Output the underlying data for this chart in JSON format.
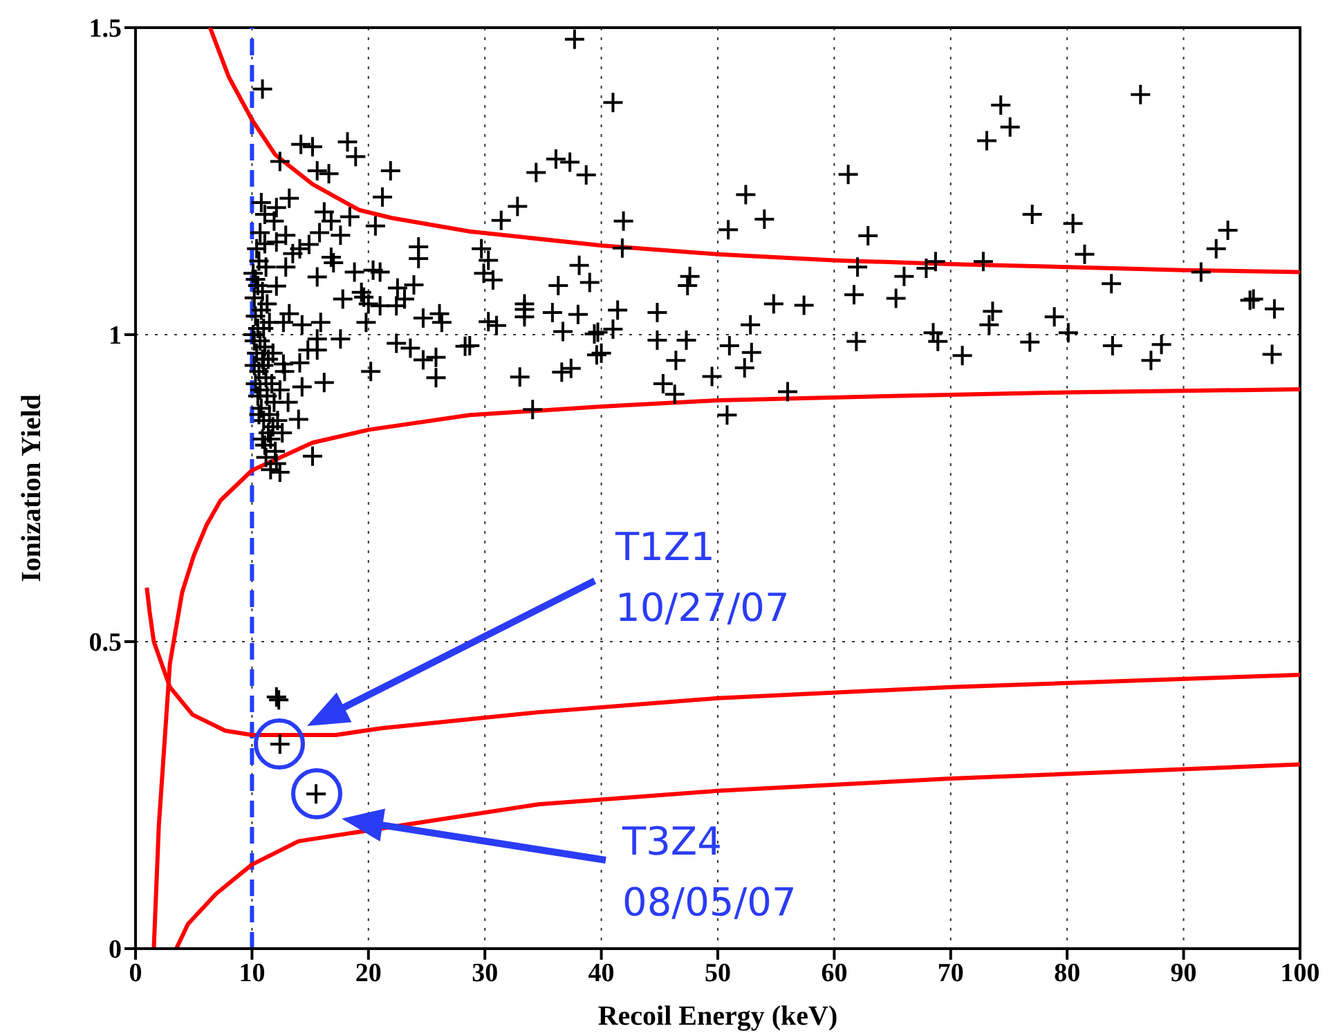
{
  "chart_data": {
    "type": "scatter",
    "xlabel": "Recoil Energy (keV)",
    "ylabel": "Ionization Yield",
    "xlim": [
      0,
      100
    ],
    "xticks": [
      0,
      10,
      20,
      30,
      40,
      50,
      60,
      70,
      80,
      90,
      100
    ],
    "ylim": [
      0,
      1.5
    ],
    "yticks": [
      0,
      0.5,
      1,
      1.5
    ],
    "grid": true,
    "ref_lines": [
      {
        "axis": "x",
        "value": 10,
        "color": "#2040ff",
        "line_style": "dashed"
      }
    ],
    "annotations": [
      "T1Z1 10/27/07",
      "T3Z4 08/05/07"
    ],
    "series": [
      {
        "marker": "cross",
        "color": "#000000",
        "x": [
          10.9,
          14.2,
          15.2,
          18.2,
          18.9,
          12.4,
          15.6,
          16.6,
          21.9,
          21.2,
          13.2,
          10.8,
          12.1,
          11.1,
          11.9,
          16.2,
          18.4,
          20.6,
          16.8,
          15.8,
          17.6,
          10.7,
          11.1,
          12.9,
          12.1,
          14.9,
          14.1,
          13.5,
          16.8,
          17.0,
          24.3,
          24.3,
          12.9,
          15.6,
          18.8,
          20.4,
          21.0,
          12.1,
          22.5,
          23.9,
          19.4,
          17.8,
          19.6,
          20.0,
          21.0,
          23.1,
          22.4,
          13.2,
          12.7,
          15.9,
          14.3,
          24.7,
          26.1,
          26.3,
          19.8,
          17.6,
          15.6,
          14.8,
          15.6,
          22.4,
          23.6,
          24.7,
          25.8,
          25.8,
          28.3,
          20.2,
          12.7,
          14.1,
          14.3,
          16.2,
          14.0,
          15.2,
          12.4,
          37.7,
          41.0,
          36.1,
          37.3,
          34.4,
          38.7,
          32.8,
          31.4,
          41.9,
          29.7,
          30.3,
          29.9,
          30.7,
          38.1,
          36.3,
          39.0,
          41.8,
          33.4,
          33.4,
          33.4,
          35.8,
          38.0,
          41.4,
          30.3,
          31.0,
          36.7,
          39.4,
          39.7,
          41.0,
          28.7,
          39.6,
          40.0,
          33.0,
          36.6,
          37.4,
          34.1,
          44.8,
          44.8,
          47.3,
          46.4,
          47.6,
          47.4,
          45.3,
          46.3,
          49.5,
          50.8,
          51.0,
          52.8,
          52.9,
          52.3,
          54.8,
          57.4,
          56.0,
          50.9,
          52.4,
          54.0,
          61.2,
          62.9,
          62.0,
          61.7,
          61.9,
          65.3,
          66.0,
          67.9,
          68.7,
          68.5,
          68.9,
          71.0,
          73.1,
          74.3,
          75.1,
          72.8,
          73.6,
          73.3,
          77.0,
          76.8,
          78.9,
          80.1,
          80.5,
          81.5,
          83.8,
          83.9,
          86.3,
          87.2,
          88.1,
          91.5,
          92.8,
          93.8,
          95.7,
          96.0,
          97.8,
          97.6,
          12.3,
          12.1,
          12.4,
          15.5,
          10.1,
          10.2,
          10.3,
          10.1,
          10.4,
          10.2,
          10.5,
          10.6,
          10.3,
          10.7,
          10.8,
          10.5,
          10.9,
          11.0,
          10.6,
          11.1,
          10.8,
          11.2,
          11.0,
          11.3,
          10.9,
          11.4,
          11.1,
          11.5,
          11.2,
          11.6,
          11.8,
          12.0,
          11.4,
          11.7,
          11.9,
          12.2,
          11.5,
          11.3,
          10.4,
          10.2,
          10.7,
          11.6,
          12.1,
          10.5,
          10.3,
          11.0,
          11.8,
          12.4,
          12.6,
          13.1,
          12.8,
          10.6,
          11.2,
          10.9
        ],
        "values": [
          1.4,
          1.31,
          1.306,
          1.314,
          1.29,
          1.282,
          1.267,
          1.262,
          1.267,
          1.224,
          1.222,
          1.215,
          1.207,
          1.196,
          1.185,
          1.2,
          1.192,
          1.177,
          1.185,
          1.166,
          1.162,
          1.166,
          1.148,
          1.162,
          1.151,
          1.147,
          1.14,
          1.132,
          1.126,
          1.117,
          1.143,
          1.124,
          1.11,
          1.094,
          1.102,
          1.105,
          1.102,
          1.079,
          1.076,
          1.081,
          1.069,
          1.058,
          1.061,
          1.05,
          1.047,
          1.058,
          1.047,
          1.034,
          1.02,
          1.02,
          1.016,
          1.027,
          1.034,
          1.02,
          1.02,
          0.993,
          0.993,
          0.975,
          0.975,
          0.986,
          0.978,
          0.959,
          0.963,
          0.93,
          0.981,
          0.94,
          0.952,
          0.954,
          0.915,
          0.922,
          0.862,
          0.802,
          0.776,
          1.481,
          1.378,
          1.286,
          1.281,
          1.264,
          1.26,
          1.209,
          1.186,
          1.185,
          1.14,
          1.121,
          1.1,
          1.089,
          1.113,
          1.08,
          1.085,
          1.141,
          1.05,
          1.041,
          1.029,
          1.036,
          1.033,
          1.04,
          1.021,
          1.015,
          1.005,
          1.001,
          1.004,
          1.009,
          0.982,
          0.967,
          0.97,
          0.931,
          0.939,
          0.945,
          0.878,
          1.036,
          0.991,
          0.991,
          0.958,
          1.095,
          1.08,
          0.92,
          0.903,
          0.932,
          0.869,
          0.982,
          1.016,
          0.971,
          0.946,
          1.05,
          1.048,
          0.907,
          1.171,
          1.228,
          1.188,
          1.261,
          1.161,
          1.11,
          1.065,
          0.989,
          1.059,
          1.095,
          1.108,
          1.119,
          1.003,
          0.989,
          0.966,
          1.316,
          1.374,
          1.338,
          1.119,
          1.038,
          1.016,
          1.196,
          0.988,
          1.029,
          1.003,
          1.181,
          1.131,
          1.083,
          0.982,
          1.391,
          0.958,
          0.984,
          1.102,
          1.14,
          1.17,
          1.056,
          1.058,
          1.042,
          0.968,
          0.405,
          0.41,
          0.333,
          0.252,
          1.1,
          1.06,
          1.03,
          1.0,
          0.97,
          0.95,
          1.08,
          1.12,
          0.92,
          0.99,
          1.04,
          0.9,
          0.96,
          1.01,
          0.94,
          0.98,
          0.88,
          0.93,
          0.86,
          0.9,
          1.07,
          0.84,
          0.82,
          0.87,
          0.8,
          0.83,
          0.85,
          0.81,
          0.96,
          0.92,
          0.89,
          0.86,
          1.02,
          1.05,
          1.14,
          0.99,
          0.91,
          0.78,
          0.79,
          1.01,
          1.09,
          0.95,
          0.97,
          0.91,
          0.84,
          0.89,
          0.94,
          0.87,
          1.11,
          0.83
        ]
      },
      {
        "type": "line",
        "color": "#ff0000",
        "x": [
          6.4,
          8,
          10,
          12,
          15.2,
          19.2,
          22,
          28.7,
          40.1,
          50,
          60,
          70,
          80,
          90,
          100
        ],
        "values": [
          1.5,
          1.42,
          1.35,
          1.293,
          1.245,
          1.203,
          1.19,
          1.168,
          1.145,
          1.131,
          1.121,
          1.115,
          1.11,
          1.105,
          1.102
        ]
      },
      {
        "type": "line",
        "color": "#ff0000",
        "x": [
          1.57,
          2,
          2.95,
          4,
          5,
          6.1,
          7.3,
          10,
          15.2,
          20,
          28.7,
          40,
          50,
          65,
          80,
          100
        ],
        "values": [
          0,
          0.2,
          0.464,
          0.58,
          0.64,
          0.69,
          0.73,
          0.779,
          0.824,
          0.845,
          0.869,
          0.883,
          0.893,
          0.9,
          0.906,
          0.911
        ]
      },
      {
        "type": "line",
        "color": "#ff0000",
        "x": [
          0.97,
          1.2,
          1.57,
          2.95,
          4.9,
          7.7,
          10,
          17.2,
          21.1,
          34.6,
          50,
          70,
          100
        ],
        "values": [
          0.588,
          0.55,
          0.5,
          0.426,
          0.381,
          0.355,
          0.348,
          0.348,
          0.359,
          0.385,
          0.408,
          0.426,
          0.446
        ]
      },
      {
        "type": "line",
        "color": "#ff0000",
        "x": [
          3.5,
          4.5,
          6.9,
          10,
          14,
          34.6,
          50,
          70,
          100
        ],
        "values": [
          0,
          0.04,
          0.089,
          0.137,
          0.175,
          0.235,
          0.257,
          0.277,
          0.3
        ]
      }
    ]
  }
}
